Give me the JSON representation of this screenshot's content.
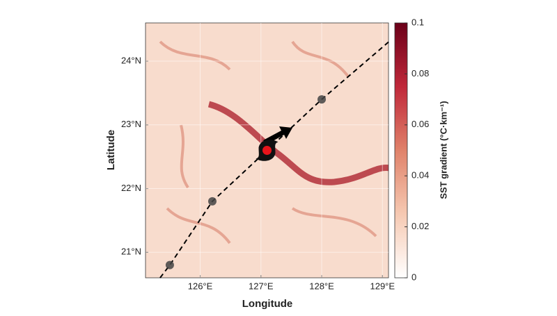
{
  "chart_data": {
    "type": "map",
    "xlabel": "Longitude",
    "ylabel": "Latitude",
    "xlim": [
      125.1,
      129.1
    ],
    "ylim": [
      20.6,
      24.6
    ],
    "xticks": [
      {
        "value": 126,
        "label": "126°E"
      },
      {
        "value": 127,
        "label": "127°E"
      },
      {
        "value": 128,
        "label": "128°E"
      },
      {
        "value": 129,
        "label": "129°E"
      }
    ],
    "yticks": [
      {
        "value": 21,
        "label": "21°N"
      },
      {
        "value": 22,
        "label": "22°N"
      },
      {
        "value": 23,
        "label": "23°N"
      },
      {
        "value": 24,
        "label": "24°N"
      }
    ],
    "colorbar": {
      "label": "SST gradient (°C·km⁻¹)",
      "lim": [
        0,
        0.1
      ],
      "ticks": [
        0,
        0.02,
        0.04,
        0.06,
        0.08,
        0.1
      ],
      "colors": [
        "#ffffff",
        "#f6c9b2",
        "#e0826a",
        "#c0283a",
        "#6b0019"
      ]
    },
    "track": {
      "x": [
        125.34,
        125.5,
        126.2,
        127.1,
        128.0,
        129.1
      ],
      "y": [
        20.6,
        20.8,
        21.8,
        22.6,
        23.4,
        24.3
      ],
      "color": "#000000"
    },
    "positions": {
      "x": [
        125.5,
        126.2,
        127.1,
        128.0
      ],
      "y": [
        20.8,
        21.8,
        22.6,
        23.4
      ],
      "color": "#444444",
      "current_color": "#e8141b",
      "current": 2
    }
  }
}
